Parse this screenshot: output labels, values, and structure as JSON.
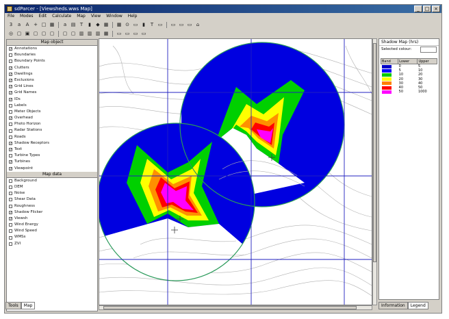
{
  "window": {
    "title": "sdParcer - [Viewsheds.wws Map]"
  },
  "menu": [
    "File",
    "Modes",
    "Edit",
    "Calculate",
    "Map",
    "View",
    "Window",
    "Help"
  ],
  "toolbar1": [
    "3",
    "a",
    "A",
    "+",
    "□",
    "▦",
    "a",
    "▤",
    "T",
    "▮",
    "◆",
    "▦",
    "▦",
    "⊙",
    "▭",
    "▮",
    "T",
    "▭",
    "▭",
    "▭",
    "▭",
    "⌂"
  ],
  "toolbar2": [
    "◎",
    "▢",
    "▣",
    "▢",
    "▢",
    "▢",
    "▢",
    "▢",
    "▥",
    "▥",
    "▥",
    "▦",
    "▭",
    "▭",
    "▭",
    "▭"
  ],
  "left_panel": {
    "header1": "Map object",
    "objects": [
      {
        "label": "Annotations",
        "checked": true
      },
      {
        "label": "Boundaries",
        "checked": false
      },
      {
        "label": "Boundary Points",
        "checked": false
      },
      {
        "label": "Clutters",
        "checked": true
      },
      {
        "label": "Dwellings",
        "checked": true
      },
      {
        "label": "Exclusions",
        "checked": true
      },
      {
        "label": "Grid Lines",
        "checked": true
      },
      {
        "label": "Grid Names",
        "checked": true
      },
      {
        "label": "IDs",
        "checked": true
      },
      {
        "label": "Labels",
        "checked": false
      },
      {
        "label": "Meter Objects",
        "checked": false
      },
      {
        "label": "Overhead",
        "checked": true
      },
      {
        "label": "Photo Horizon",
        "checked": false
      },
      {
        "label": "Radar Stations",
        "checked": false
      },
      {
        "label": "Roads",
        "checked": false
      },
      {
        "label": "Shadow Receptors",
        "checked": true
      },
      {
        "label": "Text",
        "checked": true
      },
      {
        "label": "Turbine Types",
        "checked": false
      },
      {
        "label": "Turbines",
        "checked": true
      },
      {
        "label": "Viewpoint",
        "checked": true
      }
    ],
    "header2": "Map data",
    "data_layers": [
      {
        "label": "Background",
        "checked": false
      },
      {
        "label": "DEM",
        "checked": false
      },
      {
        "label": "Noise",
        "checked": false
      },
      {
        "label": "Shear Data",
        "checked": false
      },
      {
        "label": "Roughness",
        "checked": false
      },
      {
        "label": "Shadow Flicker",
        "checked": true
      },
      {
        "label": "Viewsh",
        "checked": true
      },
      {
        "label": "Wind Energy",
        "checked": false
      },
      {
        "label": "Wind Speed",
        "checked": false
      },
      {
        "label": "WMSs",
        "checked": false
      },
      {
        "label": "ZVI",
        "checked": false
      }
    ],
    "tabs": [
      "Tools",
      "Map"
    ]
  },
  "right_panel": {
    "title": "Shadow Map (hrs)",
    "row_label": "Selected colour:",
    "legend_headers": [
      "Band",
      "Lower",
      "Upper"
    ],
    "legend_rows": [
      {
        "band": "1",
        "lower": "0",
        "upper": "5",
        "color": "#0000c8"
      },
      {
        "band": "2",
        "lower": "5",
        "upper": "10",
        "color": "#0000ff"
      },
      {
        "band": "3",
        "lower": "10",
        "upper": "20",
        "color": "#00c800"
      },
      {
        "band": "4",
        "lower": "20",
        "upper": "30",
        "color": "#ffff00"
      },
      {
        "band": "5",
        "lower": "30",
        "upper": "40",
        "color": "#ff8000"
      },
      {
        "band": "6",
        "lower": "40",
        "upper": "50",
        "color": "#ff0000"
      },
      {
        "band": "7",
        "lower": "50",
        "upper": "1000",
        "color": "#ff00ff"
      }
    ],
    "tabs": [
      "Information",
      "Legend"
    ]
  },
  "colors": {
    "band_blue": "#0000e0",
    "band_green": "#00d000",
    "band_yellow": "#ffff00",
    "band_orange": "#ff9000",
    "band_red": "#ff0000",
    "band_magenta": "#ff00ff",
    "circle": "#2a9a5a",
    "gridline": "#2020c0"
  }
}
